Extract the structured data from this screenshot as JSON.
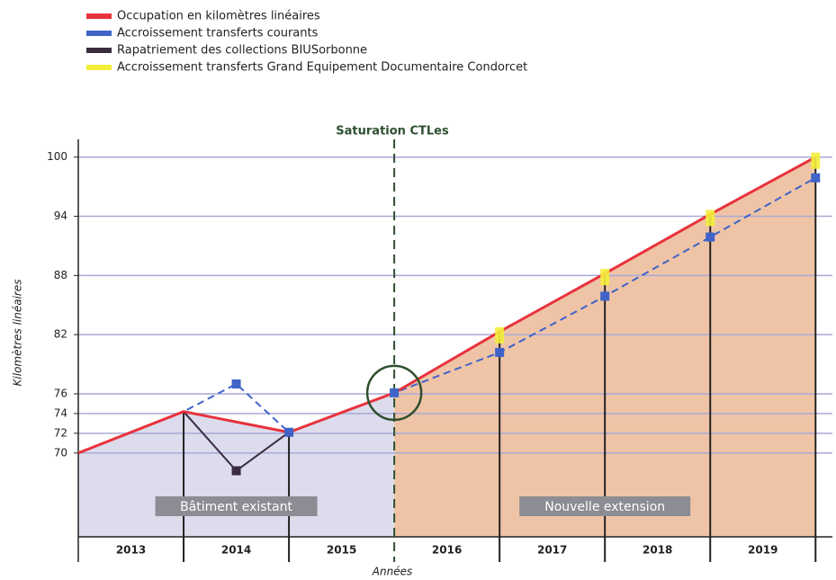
{
  "chart_data": {
    "type": "line",
    "legend": [
      "Occupation en kilomètres linéaires",
      "Accroissement transferts courants",
      "Rapatriement des collections BIUSorbonne",
      "Accroissement transferts Grand Equipement Documentaire Condorcet"
    ],
    "ylabel": "Kilomètres linéaires",
    "xlabel": "Années",
    "annotation": "Saturation CTLes",
    "regions": [
      "Bâtiment existant",
      "Nouvelle extension"
    ],
    "categories": [
      "2013",
      "2014",
      "2015",
      "2016",
      "2017",
      "2018",
      "2019"
    ],
    "xlim": [
      2013,
      2020.16
    ],
    "ylim": [
      61.5,
      101.8
    ],
    "yticks": [
      70,
      72,
      74,
      76,
      82,
      88,
      94,
      100
    ],
    "grid": true,
    "saturation_x": 2016,
    "series": [
      {
        "name": "Occupation en kilomètres linéaires",
        "color": "#e8323c",
        "x": [
          2013,
          2014,
          2015,
          2016,
          2017,
          2018,
          2019,
          2020
        ],
        "values": [
          70,
          74.2,
          72.1,
          76.1,
          82.3,
          88.2,
          94.2,
          100
        ]
      },
      {
        "name": "Accroissement transferts courants",
        "color": "#3f63c8",
        "x": [
          2013,
          2014,
          2014.5,
          2015,
          2016,
          2017,
          2018,
          2019,
          2020
        ],
        "values": [
          70,
          74.2,
          77,
          72.1,
          76.1,
          80.2,
          85.9,
          91.9,
          97.9
        ]
      },
      {
        "name": "Rapatriement des collections BIUSorbonne",
        "color": "#3a2c40",
        "x": [
          2014,
          2014.5,
          2015
        ],
        "values": [
          74.2,
          68.2,
          72.1
        ]
      },
      {
        "name": "Accroissement transferts Grand Equipement Documentaire Condorcet",
        "color": "#f4ee3a",
        "x": [
          2017,
          2018,
          2019,
          2020
        ],
        "values": [
          82.3,
          88.2,
          94.2,
          100
        ]
      }
    ]
  }
}
